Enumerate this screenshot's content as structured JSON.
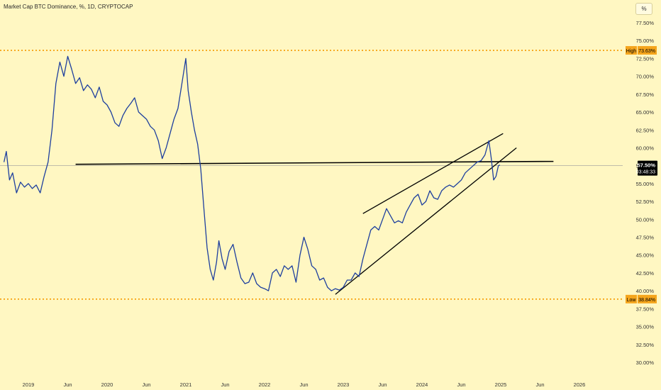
{
  "header": {
    "title": "Market Cap BTC Dominance, %, 1D, CRYPTOCAP",
    "scale_button": "%"
  },
  "chart_data": {
    "type": "line",
    "ylim": [
      29.5,
      77.5
    ],
    "y_ticks": [
      "30.00%",
      "32.50%",
      "35.00%",
      "37.50%",
      "40.00%",
      "42.50%",
      "45.00%",
      "47.50%",
      "50.00%",
      "52.50%",
      "55.00%",
      "57.50%",
      "60.00%",
      "62.50%",
      "65.00%",
      "67.50%",
      "70.00%",
      "72.50%",
      "75.00%",
      "77.50%"
    ],
    "y_tick_values": [
      30,
      32.5,
      35,
      37.5,
      40,
      42.5,
      45,
      47.5,
      50,
      52.5,
      55,
      57.5,
      60,
      62.5,
      65,
      67.5,
      70,
      72.5,
      75,
      77.5
    ],
    "x_ticks": [
      {
        "t": 2019.0,
        "label": "2019"
      },
      {
        "t": 2019.5,
        "label": "Jun"
      },
      {
        "t": 2020.0,
        "label": "2020"
      },
      {
        "t": 2020.5,
        "label": "Jun"
      },
      {
        "t": 2021.0,
        "label": "2021"
      },
      {
        "t": 2021.5,
        "label": "Jun"
      },
      {
        "t": 2022.0,
        "label": "2022"
      },
      {
        "t": 2022.5,
        "label": "Jun"
      },
      {
        "t": 2023.0,
        "label": "2023"
      },
      {
        "t": 2023.5,
        "label": "Jun"
      },
      {
        "t": 2024.0,
        "label": "2024"
      },
      {
        "t": 2024.5,
        "label": "Jun"
      },
      {
        "t": 2025.0,
        "label": "2025"
      },
      {
        "t": 2025.5,
        "label": "Jun"
      },
      {
        "t": 2026.0,
        "label": "2026"
      }
    ],
    "series": [
      {
        "color": "#1e3f9e",
        "x": [
          2018.69,
          2018.72,
          2018.76,
          2018.8,
          2018.85,
          2018.9,
          2018.95,
          2019.0,
          2019.05,
          2019.1,
          2019.15,
          2019.2,
          2019.25,
          2019.3,
          2019.35,
          2019.4,
          2019.45,
          2019.5,
          2019.55,
          2019.6,
          2019.65,
          2019.7,
          2019.75,
          2019.8,
          2019.85,
          2019.9,
          2019.95,
          2020.0,
          2020.05,
          2020.1,
          2020.15,
          2020.2,
          2020.25,
          2020.3,
          2020.35,
          2020.4,
          2020.45,
          2020.5,
          2020.55,
          2020.6,
          2020.65,
          2020.7,
          2020.75,
          2020.8,
          2020.85,
          2020.9,
          2020.95,
          2021.0,
          2021.03,
          2021.07,
          2021.11,
          2021.15,
          2021.19,
          2021.23,
          2021.27,
          2021.31,
          2021.35,
          2021.39,
          2021.42,
          2021.46,
          2021.5,
          2021.55,
          2021.6,
          2021.65,
          2021.7,
          2021.75,
          2021.8,
          2021.85,
          2021.9,
          2021.95,
          2022.0,
          2022.05,
          2022.1,
          2022.15,
          2022.2,
          2022.25,
          2022.3,
          2022.35,
          2022.4,
          2022.45,
          2022.5,
          2022.55,
          2022.6,
          2022.65,
          2022.7,
          2022.75,
          2022.8,
          2022.85,
          2022.9,
          2022.95,
          2023.0,
          2023.05,
          2023.1,
          2023.15,
          2023.2,
          2023.25,
          2023.3,
          2023.35,
          2023.4,
          2023.45,
          2023.5,
          2023.55,
          2023.6,
          2023.65,
          2023.7,
          2023.75,
          2023.8,
          2023.85,
          2023.9,
          2023.95,
          2024.0,
          2024.05,
          2024.1,
          2024.15,
          2024.2,
          2024.25,
          2024.3,
          2024.35,
          2024.4,
          2024.45,
          2024.5,
          2024.55,
          2024.6,
          2024.65,
          2024.7,
          2024.75,
          2024.8,
          2024.85,
          2024.88,
          2024.91,
          2024.94,
          2024.97,
          2024.99
        ],
        "y": [
          58.0,
          59.5,
          55.5,
          56.5,
          53.7,
          55.2,
          54.5,
          55.0,
          54.3,
          54.8,
          53.7,
          56.0,
          58.0,
          62.5,
          69.0,
          72.0,
          70.0,
          72.8,
          71.0,
          69.0,
          69.8,
          68.0,
          68.8,
          68.2,
          67.0,
          68.5,
          66.5,
          66.0,
          65.0,
          63.5,
          63.0,
          64.5,
          65.5,
          66.2,
          67.0,
          65.0,
          64.5,
          64.0,
          63.0,
          62.5,
          61.0,
          58.5,
          60.0,
          62.0,
          64.0,
          65.5,
          69.0,
          72.5,
          68.0,
          65.0,
          62.5,
          60.5,
          57.0,
          51.5,
          46.0,
          43.0,
          41.5,
          44.0,
          47.0,
          44.5,
          43.0,
          45.5,
          46.5,
          44.0,
          41.8,
          41.0,
          41.2,
          42.5,
          41.0,
          40.5,
          40.3,
          40.0,
          42.5,
          43.0,
          42.0,
          43.5,
          43.0,
          43.5,
          41.2,
          45.0,
          47.5,
          45.8,
          43.5,
          43.0,
          41.5,
          41.8,
          40.5,
          40.0,
          40.3,
          40.1,
          40.5,
          41.5,
          41.5,
          42.5,
          42.0,
          44.5,
          46.5,
          48.5,
          49.0,
          48.5,
          50.0,
          51.5,
          50.5,
          49.5,
          49.8,
          49.5,
          51.0,
          52.0,
          53.0,
          53.5,
          52.0,
          52.5,
          54.0,
          53.0,
          52.8,
          54.0,
          54.5,
          54.8,
          54.5,
          55.0,
          55.5,
          56.5,
          57.0,
          57.5,
          58.0,
          58.2,
          59.0,
          61.0,
          58.5,
          55.5,
          56.0,
          57.5,
          57.6
        ]
      }
    ],
    "trendlines": [
      {
        "x": [
          2019.6,
          2025.67
        ],
        "y": [
          57.7,
          58.1
        ]
      },
      {
        "x": [
          2023.25,
          2025.03
        ],
        "y": [
          50.8,
          62.0
        ]
      },
      {
        "x": [
          2022.9,
          2025.2
        ],
        "y": [
          39.5,
          60.0
        ]
      }
    ],
    "levels": {
      "high": {
        "label": "High",
        "value": 73.63,
        "value_label": "73.63%"
      },
      "low": {
        "label": "Low",
        "value": 38.84,
        "value_label": "38.84%"
      },
      "current": {
        "value": 57.5,
        "value_label": "57.50%",
        "countdown": "03:48:33"
      }
    },
    "colors": {
      "background": "#fff7c2",
      "series": "#1e3f9e",
      "level_line": "#f59a00",
      "level_tag": "#f5a51c",
      "price_tag": "#000000"
    },
    "grid": false
  }
}
